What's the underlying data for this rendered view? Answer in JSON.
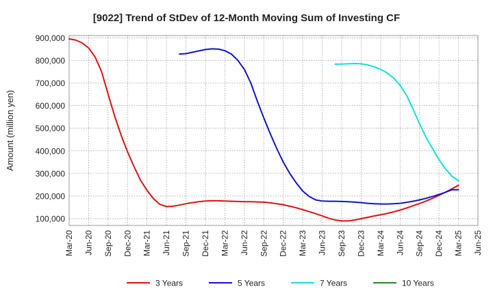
{
  "chart_data": {
    "type": "line",
    "title": "[9022]  Trend of StDev of 12-Month Moving Sum of Investing CF",
    "xlabel": "",
    "ylabel": "Amount (million yen)",
    "ylim": [
      70000,
      910000
    ],
    "yticks": [
      100000,
      200000,
      300000,
      400000,
      500000,
      600000,
      700000,
      800000,
      900000
    ],
    "ytick_labels": [
      "100,000",
      "200,000",
      "300,000",
      "400,000",
      "500,000",
      "600,000",
      "700,000",
      "800,000",
      "900,000"
    ],
    "x_tick_labels": [
      "Mar-20",
      "Jun-20",
      "Sep-20",
      "Dec-20",
      "Mar-21",
      "Jun-21",
      "Sep-21",
      "Dec-21",
      "Mar-22",
      "Jun-22",
      "Sep-22",
      "Dec-22",
      "Mar-23",
      "Jun-23",
      "Sep-23",
      "Dec-23",
      "Mar-24",
      "Jun-24",
      "Sep-24",
      "Dec-24",
      "Mar-25",
      "Jun-25"
    ],
    "grid": true,
    "legend_position": "bottom",
    "series": [
      {
        "name": "3 Years",
        "color": "#dd1111",
        "x": [
          "Mar-20",
          "Apr-20",
          "May-20",
          "Jun-20",
          "Jul-20",
          "Aug-20",
          "Sep-20",
          "Oct-20",
          "Nov-20",
          "Dec-20",
          "Jan-21",
          "Feb-21",
          "Mar-21",
          "Apr-21",
          "May-21",
          "Jun-21",
          "Jul-21",
          "Aug-21",
          "Sep-21",
          "Oct-21",
          "Nov-21",
          "Dec-21",
          "Jan-22",
          "Feb-22",
          "Mar-22",
          "Apr-22",
          "May-22",
          "Jun-22",
          "Jul-22",
          "Aug-22",
          "Sep-22",
          "Oct-22",
          "Nov-22",
          "Dec-22",
          "Jan-23",
          "Feb-23",
          "Mar-23",
          "Apr-23",
          "May-23",
          "Jun-23",
          "Jul-23",
          "Aug-23",
          "Sep-23",
          "Oct-23",
          "Nov-23",
          "Dec-23",
          "Jan-24",
          "Feb-24",
          "Mar-24",
          "Apr-24",
          "May-24",
          "Jun-24",
          "Jul-24",
          "Aug-24",
          "Sep-24",
          "Oct-24",
          "Nov-24",
          "Dec-24",
          "Jan-25",
          "Feb-25",
          "Mar-25"
        ],
        "values": [
          895000,
          890000,
          877000,
          855000,
          815000,
          750000,
          650000,
          555000,
          470000,
          395000,
          330000,
          270000,
          225000,
          188000,
          163000,
          153000,
          155000,
          160000,
          166000,
          171000,
          175000,
          178000,
          179000,
          179000,
          178000,
          177000,
          176000,
          175000,
          175000,
          174000,
          173000,
          170000,
          166000,
          162000,
          155000,
          148000,
          140000,
          131000,
          122000,
          112000,
          102000,
          94000,
          90000,
          90000,
          94000,
          100000,
          106000,
          112000,
          117000,
          123000,
          130000,
          138000,
          147000,
          157000,
          167000,
          178000,
          190000,
          203000,
          217000,
          232000,
          248000
        ]
      },
      {
        "name": "5 Years",
        "color": "#1111cc",
        "x": [
          "Aug-21",
          "Sep-21",
          "Oct-21",
          "Nov-21",
          "Dec-21",
          "Jan-22",
          "Feb-22",
          "Mar-22",
          "Apr-22",
          "May-22",
          "Jun-22",
          "Jul-22",
          "Aug-22",
          "Sep-22",
          "Oct-22",
          "Nov-22",
          "Dec-22",
          "Jan-23",
          "Feb-23",
          "Mar-23",
          "Apr-23",
          "May-23",
          "Jun-23",
          "Jul-23",
          "Aug-23",
          "Sep-23",
          "Oct-23",
          "Nov-23",
          "Dec-23",
          "Jan-24",
          "Feb-24",
          "Mar-24",
          "Apr-24",
          "May-24",
          "Jun-24",
          "Jul-24",
          "Aug-24",
          "Sep-24",
          "Oct-24",
          "Nov-24",
          "Dec-24",
          "Jan-25",
          "Feb-25",
          "Mar-25"
        ],
        "values": [
          828000,
          830000,
          836000,
          842000,
          848000,
          851000,
          850000,
          843000,
          828000,
          800000,
          760000,
          700000,
          620000,
          545000,
          475000,
          410000,
          350000,
          300000,
          258000,
          222000,
          198000,
          183000,
          178000,
          177000,
          177000,
          176000,
          175000,
          173000,
          171000,
          168000,
          166000,
          165000,
          165000,
          166000,
          168000,
          172000,
          177000,
          183000,
          190000,
          198000,
          207000,
          217000,
          228000,
          228000
        ]
      },
      {
        "name": "7 Years",
        "color": "#11dddd",
        "x": [
          "Aug-23",
          "Sep-23",
          "Oct-23",
          "Nov-23",
          "Dec-23",
          "Jan-24",
          "Feb-24",
          "Mar-24",
          "Apr-24",
          "May-24",
          "Jun-24",
          "Jul-24",
          "Aug-24",
          "Sep-24",
          "Oct-24",
          "Nov-24",
          "Dec-24",
          "Jan-25",
          "Feb-25",
          "Mar-25"
        ],
        "values": [
          783000,
          784000,
          785000,
          786000,
          785000,
          780000,
          772000,
          760000,
          745000,
          722000,
          690000,
          645000,
          585000,
          520000,
          460000,
          410000,
          362000,
          320000,
          288000,
          268000
        ]
      },
      {
        "name": "10 Years",
        "color": "#228822",
        "x": [],
        "values": []
      }
    ]
  }
}
